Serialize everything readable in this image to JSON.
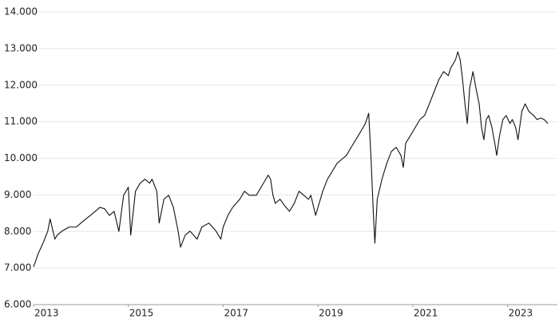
{
  "chart_data": {
    "type": "line",
    "x": [
      2013.0,
      2013.1,
      2013.2,
      2013.3,
      2013.35,
      2013.45,
      2013.5,
      2013.6,
      2013.75,
      2013.9,
      2014.0,
      2014.1,
      2014.2,
      2014.3,
      2014.4,
      2014.5,
      2014.6,
      2014.7,
      2014.8,
      2014.9,
      2015.0,
      2015.05,
      2015.15,
      2015.25,
      2015.35,
      2015.45,
      2015.5,
      2015.6,
      2015.65,
      2015.75,
      2015.85,
      2015.95,
      2016.05,
      2016.1,
      2016.2,
      2016.3,
      2016.45,
      2016.55,
      2016.7,
      2016.85,
      2016.95,
      2017.0,
      2017.1,
      2017.2,
      2017.35,
      2017.45,
      2017.55,
      2017.7,
      2017.8,
      2017.9,
      2017.95,
      2018.0,
      2018.05,
      2018.1,
      2018.2,
      2018.3,
      2018.4,
      2018.5,
      2018.6,
      2018.7,
      2018.8,
      2018.85,
      2018.95,
      2019.0,
      2019.1,
      2019.2,
      2019.3,
      2019.4,
      2019.5,
      2019.6,
      2019.7,
      2019.8,
      2019.9,
      2020.0,
      2020.07,
      2020.12,
      2020.17,
      2020.2,
      2020.25,
      2020.35,
      2020.45,
      2020.55,
      2020.65,
      2020.75,
      2020.8,
      2020.85,
      2020.95,
      2021.05,
      2021.15,
      2021.25,
      2021.35,
      2021.45,
      2021.55,
      2021.65,
      2021.75,
      2021.8,
      2021.9,
      2021.95,
      2022.0,
      2022.05,
      2022.1,
      2022.15,
      2022.2,
      2022.27,
      2022.33,
      2022.4,
      2022.45,
      2022.5,
      2022.55,
      2022.6,
      2022.67,
      2022.73,
      2022.77,
      2022.83,
      2022.9,
      2022.97,
      2023.05,
      2023.1,
      2023.17,
      2023.22,
      2023.3,
      2023.37,
      2023.45,
      2023.55,
      2023.62,
      2023.7,
      2023.77,
      2023.85
    ],
    "series": [
      {
        "color": "#111111",
        "values": [
          7030,
          7400,
          7680,
          8010,
          8340,
          7790,
          7900,
          8010,
          8120,
          8120,
          8230,
          8340,
          8440,
          8550,
          8660,
          8620,
          8440,
          8550,
          8000,
          8990,
          9210,
          7900,
          9100,
          9320,
          9430,
          9320,
          9430,
          9100,
          8230,
          8880,
          8990,
          8660,
          8010,
          7570,
          7900,
          8010,
          7790,
          8120,
          8230,
          8010,
          7790,
          8120,
          8440,
          8660,
          8880,
          9100,
          8990,
          8990,
          9210,
          9430,
          9540,
          9430,
          8990,
          8770,
          8880,
          8700,
          8550,
          8770,
          9100,
          8990,
          8880,
          8990,
          8440,
          8660,
          9100,
          9430,
          9640,
          9860,
          9970,
          10080,
          10300,
          10510,
          10730,
          10950,
          11230,
          9970,
          8440,
          7680,
          8880,
          9430,
          9860,
          10190,
          10300,
          10080,
          9750,
          10410,
          10620,
          10840,
          11060,
          11170,
          11490,
          11820,
          12150,
          12370,
          12260,
          12470,
          12690,
          12910,
          12690,
          12150,
          11490,
          10950,
          11930,
          12370,
          11930,
          11490,
          10840,
          10510,
          11060,
          11170,
          10840,
          10410,
          10080,
          10620,
          11060,
          11170,
          10950,
          11060,
          10840,
          10510,
          11280,
          11490,
          11280,
          11170,
          11060,
          11100,
          11060,
          10950
        ]
      }
    ],
    "xlim": [
      2013,
      2024
    ],
    "xticks": [
      2013,
      2015,
      2017,
      2019,
      2021,
      2023
    ],
    "ylim": [
      6000,
      14000
    ],
    "yticks": [
      {
        "value": 6000,
        "label": "6.000"
      },
      {
        "value": 7000,
        "label": "7.000"
      },
      {
        "value": 8000,
        "label": "8.000"
      },
      {
        "value": 9000,
        "label": "9.000"
      },
      {
        "value": 10000,
        "label": "10.000"
      },
      {
        "value": 11000,
        "label": "11.000"
      },
      {
        "value": 12000,
        "label": "12.000"
      },
      {
        "value": 13000,
        "label": "13.000"
      },
      {
        "value": 14000,
        "label": "14.000"
      }
    ],
    "grid": true
  }
}
